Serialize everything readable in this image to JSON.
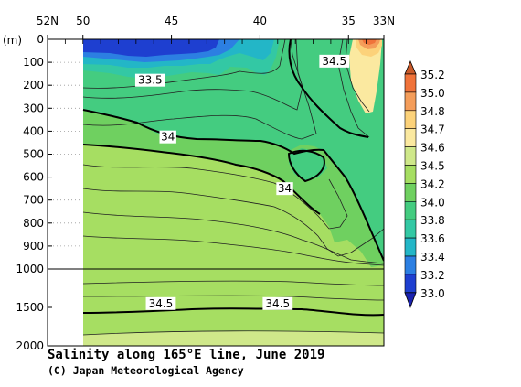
{
  "chart_data": {
    "type": "contour",
    "title": "Salinity along 165°E line, June 2019",
    "credit": "(C) Japan Meteorological Agency",
    "x_axis": {
      "range_latitude_N": [
        52,
        33
      ],
      "ticks": [
        {
          "lat": 52,
          "label": "52N"
        },
        {
          "lat": 50,
          "label": "50"
        },
        {
          "lat": 45,
          "label": "45"
        },
        {
          "lat": 40,
          "label": "40"
        },
        {
          "lat": 35,
          "label": "35"
        },
        {
          "lat": 33,
          "label": "33N"
        }
      ]
    },
    "y_axis": {
      "unit_label": "(m)",
      "upper_panel_range_m": [
        0,
        1000
      ],
      "lower_panel_range_m": [
        1000,
        2000
      ],
      "upper_ticks": [
        {
          "depth": 0,
          "label": "0"
        },
        {
          "depth": 100,
          "label": "100"
        },
        {
          "depth": 200,
          "label": "200"
        },
        {
          "depth": 300,
          "label": "300"
        },
        {
          "depth": 400,
          "label": "400"
        },
        {
          "depth": 500,
          "label": "500"
        },
        {
          "depth": 600,
          "label": "600"
        },
        {
          "depth": 700,
          "label": "700"
        },
        {
          "depth": 800,
          "label": "800"
        },
        {
          "depth": 900,
          "label": "900"
        },
        {
          "depth": 1000,
          "label": "1000"
        }
      ],
      "lower_ticks": [
        {
          "depth": 1500,
          "label": "1500"
        },
        {
          "depth": 2000,
          "label": "2000"
        }
      ]
    },
    "contour_labels": [
      {
        "text": "34.5",
        "lat": 35.8,
        "depth": 95
      },
      {
        "text": "33.5",
        "lat": 46.2,
        "depth": 178
      },
      {
        "text": "34",
        "lat": 45.2,
        "depth": 425
      },
      {
        "text": "34",
        "lat": 38.6,
        "depth": 650
      },
      {
        "text": "34.5",
        "lat": 45.6,
        "depth": 1450
      },
      {
        "text": "34.5",
        "lat": 39.0,
        "depth": 1450
      }
    ],
    "colorbar": {
      "levels": [
        "35.2",
        "35.0",
        "34.8",
        "34.7",
        "34.6",
        "34.5",
        "34.2",
        "34.0",
        "33.8",
        "33.6",
        "33.4",
        "33.2",
        "33.0"
      ],
      "colors": [
        "#c95a2a",
        "#f0733a",
        "#f49d5a",
        "#fcd27a",
        "#fbe9a0",
        "#cfe88a",
        "#a6de62",
        "#6fd060",
        "#44cc80",
        "#33c8a4",
        "#23b6c7",
        "#2c7fe2",
        "#1e3fd0",
        "#1a22b0"
      ]
    },
    "palette": {
      "s_lt_33_2": "#1e3fd0",
      "s_33_2_33_4": "#2c7fe2",
      "s_33_4_33_6": "#23b6c7",
      "s_33_6_33_8": "#33c8a4",
      "s_33_8_34_0": "#44cc80",
      "s_34_0_34_2": "#6fd060",
      "s_34_2_34_5": "#a6de62",
      "s_34_5_34_6": "#cfe88a",
      "s_34_6_34_7": "#fbe9a0",
      "s_34_7_34_8": "#fcd27a",
      "s_34_8_35_0": "#f49d5a",
      "s_35_0_35_2": "#f0733a"
    }
  }
}
